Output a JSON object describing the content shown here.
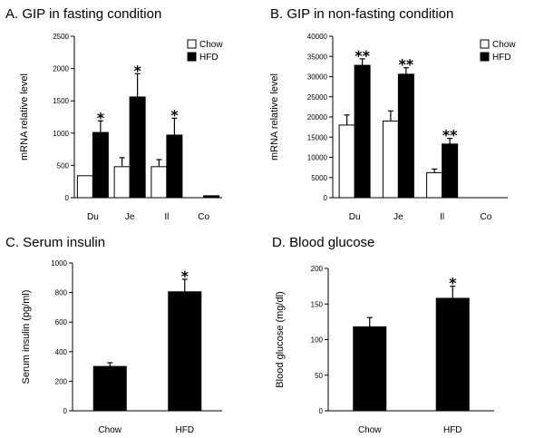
{
  "chart_data": [
    {
      "id": "A",
      "type": "bar",
      "title": "A. GIP in fasting condition",
      "ylabel": "mRNA relative level",
      "categories": [
        "Du",
        "Je",
        "Il",
        "Co"
      ],
      "ylim": [
        0,
        2500
      ],
      "yticks": [
        0,
        500,
        1000,
        1500,
        2000,
        2500
      ],
      "legend": {
        "position": "top-right",
        "entries": [
          "Chow",
          "HFD"
        ]
      },
      "series": [
        {
          "name": "Chow",
          "fill": "#ffffff",
          "values": [
            340,
            480,
            480,
            0
          ],
          "errors": [
            0,
            140,
            110,
            0
          ]
        },
        {
          "name": "HFD",
          "fill": "#000000",
          "values": [
            1010,
            1560,
            970,
            30
          ],
          "errors": [
            180,
            360,
            260,
            0
          ]
        }
      ],
      "annotations": [
        {
          "category": "Du",
          "text": "*"
        },
        {
          "category": "Je",
          "text": "*"
        },
        {
          "category": "Il",
          "text": "*"
        }
      ]
    },
    {
      "id": "B",
      "type": "bar",
      "title": "B. GIP in non-fasting condition",
      "ylabel": "mRNA relative level",
      "categories": [
        "Du",
        "Je",
        "Il",
        "Co"
      ],
      "ylim": [
        0,
        40000
      ],
      "yticks": [
        0,
        5000,
        10000,
        15000,
        20000,
        25000,
        30000,
        35000,
        40000
      ],
      "legend": {
        "position": "top-right",
        "entries": [
          "Chow",
          "HFD"
        ]
      },
      "series": [
        {
          "name": "Chow",
          "fill": "#ffffff",
          "values": [
            18000,
            19000,
            6200,
            0
          ],
          "errors": [
            2500,
            2500,
            900,
            0
          ]
        },
        {
          "name": "HFD",
          "fill": "#000000",
          "values": [
            32800,
            30600,
            13300,
            0
          ],
          "errors": [
            1600,
            1600,
            1400,
            0
          ]
        }
      ],
      "annotations": [
        {
          "category": "Du",
          "text": "**"
        },
        {
          "category": "Je",
          "text": "**"
        },
        {
          "category": "Il",
          "text": "**"
        }
      ]
    },
    {
      "id": "C",
      "type": "bar",
      "title": "C. Serum insulin",
      "ylabel": "Serum insulin (pg/ml)",
      "categories": [
        "Chow",
        "HFD"
      ],
      "ylim": [
        0,
        1000
      ],
      "yticks": [
        0,
        200,
        400,
        600,
        800,
        1000
      ],
      "series": [
        {
          "fill": "#000000",
          "values": [
            300,
            805
          ],
          "errors": [
            25,
            85
          ]
        }
      ],
      "annotations": [
        {
          "category": "HFD",
          "text": "*"
        }
      ]
    },
    {
      "id": "D",
      "type": "bar",
      "title": "D. Blood glucose",
      "ylabel": "Blood glucose (mg/dl)",
      "categories": [
        "Chow",
        "HFD"
      ],
      "ylim": [
        0,
        200
      ],
      "yticks": [
        0,
        50,
        100,
        150,
        200
      ],
      "series": [
        {
          "fill": "#000000",
          "values": [
            118,
            158
          ],
          "errors": [
            13,
            17
          ]
        }
      ],
      "annotations": [
        {
          "category": "HFD",
          "text": "*"
        }
      ]
    }
  ]
}
